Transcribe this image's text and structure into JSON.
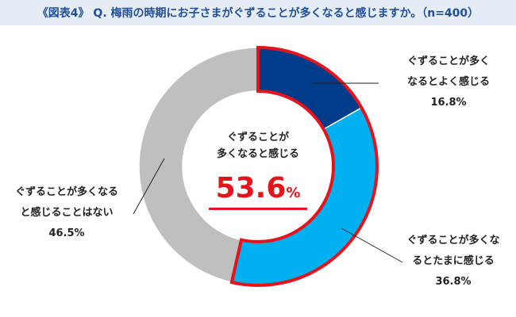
{
  "header": {
    "title": "《図表4》 Q. 梅雨の時期にお子さまがぐずることが多くなると感じますか。（n=400）"
  },
  "center": {
    "line1": "ぐずることが",
    "line2": "多くなると感じる",
    "value": "53.6",
    "unit": "%"
  },
  "chart_data": {
    "type": "pie",
    "variant": "donut",
    "n": 400,
    "slices": [
      {
        "label": "ぐずることが多くなるとよく感じる",
        "label_lines": [
          "ぐずることが多く",
          "なるとよく感じる"
        ],
        "value": 16.8,
        "value_text": "16.8%",
        "color": "#003c8a"
      },
      {
        "label": "ぐずることが多くなるとたまに感じる",
        "label_lines": [
          "ぐずることが多くな",
          "るとたまに感じる"
        ],
        "value": 36.8,
        "value_text": "36.8%",
        "color": "#00b0f0"
      },
      {
        "label": "ぐずることが多くなると感じることはない",
        "label_lines": [
          "ぐずることが多くなる",
          "と感じることはない"
        ],
        "value": 46.5,
        "value_text": "46.5%",
        "color": "#bfbfbf"
      }
    ],
    "highlight": {
      "label": "ぐずることが多くなると感じる",
      "value": 53.6,
      "color": "#e8121b"
    }
  }
}
